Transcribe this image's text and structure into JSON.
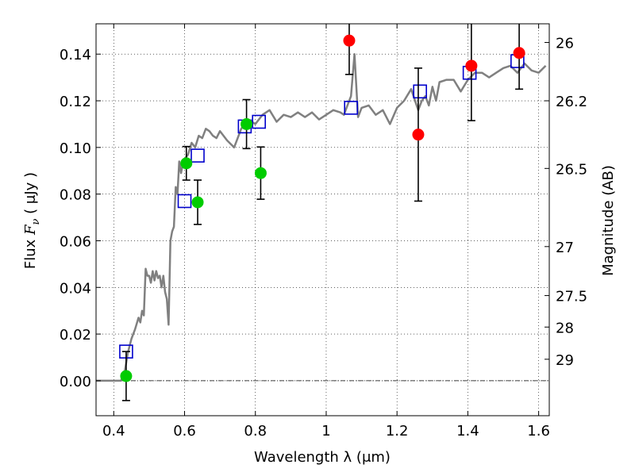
{
  "chart_data": {
    "type": "scatter",
    "title": "",
    "xlabel": "Wavelength  λ (μm)",
    "ylabel_prefix": "Flux ",
    "ylabel_math": "F",
    "ylabel_sub": "ν",
    "ylabel_suffix": "  ( μJy )",
    "ylabel_right": "Magnitude (AB)",
    "xlim": [
      0.35,
      1.63
    ],
    "ylim": [
      -0.015,
      0.153
    ],
    "grid": true,
    "x_ticks": [
      0.4,
      0.6,
      0.8,
      1.0,
      1.2,
      1.4,
      1.6
    ],
    "x_tick_labels": [
      "0.4",
      "0.6",
      "0.8",
      "1",
      "1.2",
      "1.4",
      "1.6"
    ],
    "y_ticks": [
      0.0,
      0.02,
      0.04,
      0.06,
      0.08,
      0.1,
      0.12,
      0.14
    ],
    "y_tick_labels": [
      "0.00",
      "0.02",
      "0.04",
      "0.06",
      "0.08",
      "0.10",
      "0.12",
      "0.14"
    ],
    "right_ticks": [
      {
        "label": "26",
        "flux": 0.145
      },
      {
        "label": "26.2",
        "flux": 0.12
      },
      {
        "label": "26.5",
        "flux": 0.091
      },
      {
        "label": "27",
        "flux": 0.0575
      },
      {
        "label": "27.5",
        "flux": 0.0365
      },
      {
        "label": "28",
        "flux": 0.023
      },
      {
        "label": "29",
        "flux": 0.0092
      }
    ],
    "zero_line": 0.0,
    "series": [
      {
        "name": "model-spectrum",
        "kind": "line",
        "color": "#808080",
        "x": [
          0.35,
          0.42,
          0.43,
          0.44,
          0.45,
          0.46,
          0.47,
          0.475,
          0.48,
          0.485,
          0.49,
          0.495,
          0.5,
          0.505,
          0.51,
          0.515,
          0.52,
          0.525,
          0.53,
          0.535,
          0.54,
          0.545,
          0.55,
          0.555,
          0.56,
          0.565,
          0.57,
          0.575,
          0.58,
          0.585,
          0.59,
          0.595,
          0.6,
          0.61,
          0.62,
          0.63,
          0.64,
          0.65,
          0.66,
          0.67,
          0.68,
          0.69,
          0.7,
          0.72,
          0.74,
          0.76,
          0.78,
          0.8,
          0.82,
          0.84,
          0.86,
          0.88,
          0.9,
          0.92,
          0.94,
          0.96,
          0.98,
          1.0,
          1.02,
          1.04,
          1.05,
          1.06,
          1.07,
          1.08,
          1.09,
          1.1,
          1.12,
          1.14,
          1.16,
          1.18,
          1.2,
          1.22,
          1.24,
          1.26,
          1.27,
          1.28,
          1.29,
          1.3,
          1.31,
          1.32,
          1.34,
          1.36,
          1.38,
          1.4,
          1.42,
          1.44,
          1.46,
          1.48,
          1.5,
          1.52,
          1.54,
          1.56,
          1.58,
          1.6,
          1.62
        ],
        "y": [
          0.0,
          0.0,
          0.003,
          0.012,
          0.018,
          0.022,
          0.027,
          0.025,
          0.03,
          0.028,
          0.048,
          0.045,
          0.045,
          0.042,
          0.047,
          0.043,
          0.047,
          0.044,
          0.045,
          0.04,
          0.045,
          0.038,
          0.035,
          0.024,
          0.06,
          0.064,
          0.066,
          0.083,
          0.08,
          0.094,
          0.089,
          0.093,
          0.095,
          0.097,
          0.102,
          0.1,
          0.105,
          0.104,
          0.108,
          0.107,
          0.105,
          0.104,
          0.107,
          0.103,
          0.1,
          0.108,
          0.112,
          0.11,
          0.114,
          0.116,
          0.111,
          0.114,
          0.113,
          0.115,
          0.113,
          0.115,
          0.112,
          0.114,
          0.116,
          0.115,
          0.114,
          0.118,
          0.122,
          0.14,
          0.113,
          0.117,
          0.118,
          0.114,
          0.116,
          0.11,
          0.117,
          0.12,
          0.125,
          0.116,
          0.12,
          0.122,
          0.118,
          0.126,
          0.12,
          0.128,
          0.129,
          0.129,
          0.124,
          0.129,
          0.132,
          0.132,
          0.13,
          0.132,
          0.134,
          0.135,
          0.132,
          0.136,
          0.133,
          0.132,
          0.135
        ]
      },
      {
        "name": "model-photometry",
        "kind": "open-square",
        "color": "#0000cc",
        "x": [
          0.435,
          0.6,
          0.637,
          0.77,
          0.81,
          1.07,
          1.265,
          1.405,
          1.54
        ],
        "y": [
          0.0125,
          0.077,
          0.0965,
          0.109,
          0.111,
          0.117,
          0.124,
          0.132,
          0.137
        ]
      },
      {
        "name": "optical-observations",
        "kind": "filled-circle",
        "color": "#00cc00",
        "x": [
          0.435,
          0.605,
          0.637,
          0.775,
          0.815
        ],
        "y": [
          0.002,
          0.0932,
          0.0765,
          0.11,
          0.089
        ],
        "yerr": [
          0.0105,
          0.0072,
          0.0095,
          0.0105,
          0.0112
        ]
      },
      {
        "name": "nir-observations",
        "kind": "filled-circle",
        "color": "#ff0000",
        "x": [
          1.065,
          1.26,
          1.41,
          1.545
        ],
        "y": [
          0.1458,
          0.1055,
          0.135,
          0.1405
        ],
        "yerr": [
          0.0145,
          0.0285,
          0.0235,
          0.0155
        ]
      }
    ]
  }
}
